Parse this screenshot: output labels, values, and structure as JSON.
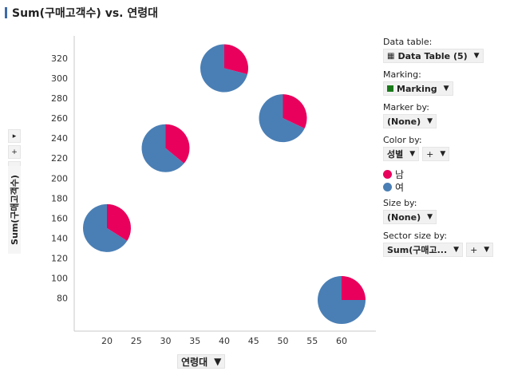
{
  "title": "Sum(구매고객수) vs. 연령대",
  "xaxis": {
    "label": "연령대"
  },
  "yaxis": {
    "label": "Sum(구매고객수)"
  },
  "colors": {
    "male": "#e8005c",
    "female": "#4a7fb5",
    "title_bar": "#3d6aa8",
    "marking": "#1a7a1a"
  },
  "panel": {
    "data_table_label": "Data table:",
    "data_table_value": "Data Table (5)",
    "marking_label": "Marking:",
    "marking_value": "Marking",
    "marker_by_label": "Marker by:",
    "marker_by_value": "(None)",
    "color_by_label": "Color by:",
    "color_by_value": "성별",
    "legend": [
      {
        "label": "남"
      },
      {
        "label": "여"
      }
    ],
    "size_by_label": "Size by:",
    "size_by_value": "(None)",
    "sector_size_label": "Sector size by:",
    "sector_size_value": "Sum(구매고...",
    "plus": "+"
  },
  "y_controls": [
    "▸",
    "+",
    "▸"
  ],
  "chart_data": {
    "type": "scatter",
    "marker": "pie",
    "xticks": [
      20,
      25,
      30,
      35,
      40,
      45,
      50,
      55,
      60
    ],
    "yticks": [
      80,
      100,
      120,
      140,
      160,
      180,
      200,
      220,
      240,
      260,
      280,
      300,
      320
    ],
    "xlim": [
      15,
      65
    ],
    "ylim": [
      50,
      335
    ],
    "points": [
      {
        "x": 20,
        "y": 150,
        "male_fraction": 0.34
      },
      {
        "x": 30,
        "y": 230,
        "male_fraction": 0.36
      },
      {
        "x": 40,
        "y": 310,
        "male_fraction": 0.29
      },
      {
        "x": 50,
        "y": 260,
        "male_fraction": 0.32
      },
      {
        "x": 60,
        "y": 78,
        "male_fraction": 0.25
      }
    ],
    "legend_series": [
      "남",
      "여"
    ],
    "grid": false
  }
}
